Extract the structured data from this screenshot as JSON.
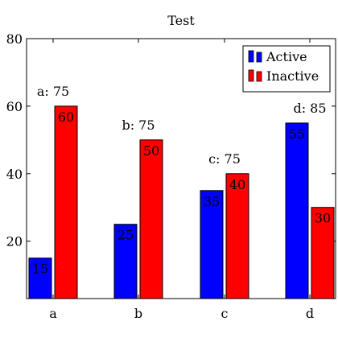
{
  "chart_data": {
    "type": "bar",
    "title": "Test",
    "xlabel": "",
    "ylabel": "",
    "categories": [
      "a",
      "b",
      "c",
      "d"
    ],
    "ylim": [
      3,
      80
    ],
    "yticks": [
      20,
      40,
      60,
      80
    ],
    "series": [
      {
        "name": "Active",
        "values": [
          15,
          25,
          35,
          55
        ],
        "color": "#0000ff"
      },
      {
        "name": "Inactive",
        "values": [
          60,
          50,
          40,
          30
        ],
        "color": "#ff0000"
      }
    ],
    "group_labels": [
      "a: 75",
      "b: 75",
      "c: 75",
      "d: 85"
    ],
    "legend_position": "top-right",
    "grid": false
  }
}
